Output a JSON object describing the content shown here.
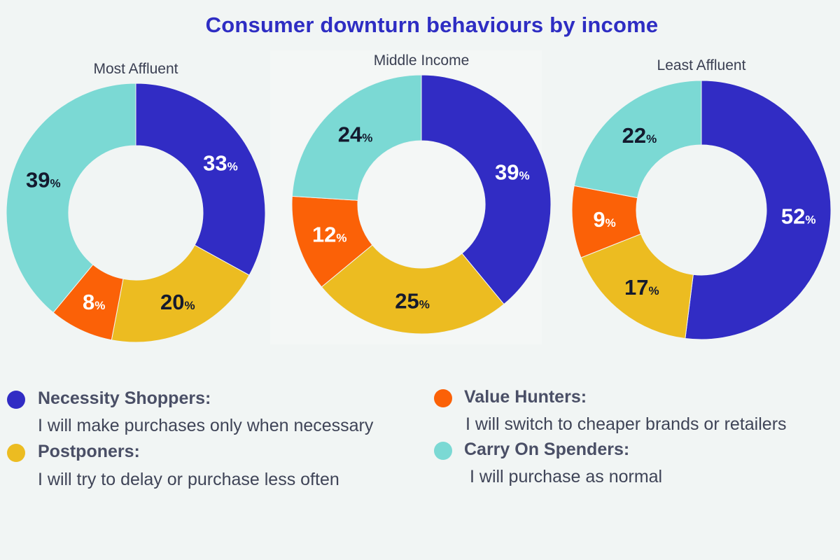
{
  "title": "Consumer downturn behaviours by income",
  "colors": {
    "necessity": "#312cc4",
    "postponers": "#ecbc21",
    "value": "#fb6107",
    "carry_on": "#7bd9d4",
    "title": "#2e2dc3"
  },
  "legend": [
    {
      "key": "necessity",
      "name": "Necessity Shoppers:",
      "desc": "I will make purchases only when necessary"
    },
    {
      "key": "value",
      "name": "Value Hunters:",
      "desc": "I will switch to cheaper brands or retailers"
    },
    {
      "key": "postponers",
      "name": "Postponers:",
      "desc": "I will try to delay or purchase less often"
    },
    {
      "key": "carry_on",
      "name": "Carry On Spenders:",
      "desc": "I will purchase as normal"
    }
  ],
  "chart_data": [
    {
      "type": "pie",
      "title": "Most Affluent",
      "categories": [
        "Necessity Shoppers",
        "Postponers",
        "Value Hunters",
        "Carry On Spenders"
      ],
      "values": [
        33,
        20,
        8,
        39
      ],
      "labels": [
        "33",
        "20",
        "8",
        "39"
      ],
      "unit": "%"
    },
    {
      "type": "pie",
      "title": "Middle Income",
      "categories": [
        "Necessity Shoppers",
        "Postponers",
        "Value Hunters",
        "Carry On Spenders"
      ],
      "values": [
        39,
        25,
        12,
        24
      ],
      "labels": [
        "39",
        "25",
        "12",
        "24"
      ],
      "unit": "%"
    },
    {
      "type": "pie",
      "title": "Least Affluent",
      "categories": [
        "Necessity Shoppers",
        "Postponers",
        "Value Hunters",
        "Carry On Spenders"
      ],
      "values": [
        52,
        17,
        9,
        22
      ],
      "labels": [
        "52",
        "17",
        "9",
        "22"
      ],
      "unit": "%"
    }
  ]
}
